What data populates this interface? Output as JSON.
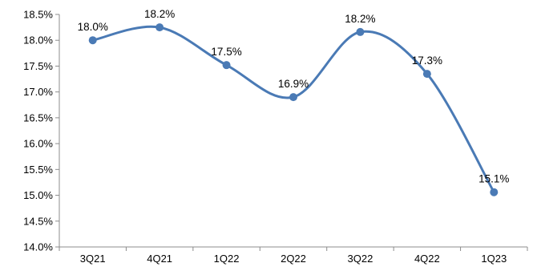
{
  "chart_data": {
    "type": "line",
    "categories": [
      "3Q21",
      "4Q21",
      "1Q22",
      "2Q22",
      "3Q22",
      "4Q22",
      "1Q23"
    ],
    "series": [
      {
        "values": [
          18.0,
          18.25,
          17.52,
          16.9,
          18.16,
          17.35,
          15.06
        ]
      }
    ],
    "data_labels": [
      "18.0%",
      "18.2%",
      "17.5%",
      "16.9%",
      "18.2%",
      "17.3%",
      "15.1%"
    ],
    "ylim": [
      14.0,
      18.5
    ],
    "y_ticks": [
      14.0,
      14.5,
      15.0,
      15.5,
      16.0,
      16.5,
      17.0,
      17.5,
      18.0,
      18.5
    ],
    "y_tick_labels": [
      "14.0%",
      "14.5%",
      "15.0%",
      "15.5%",
      "16.0%",
      "16.5%",
      "17.0%",
      "17.5%",
      "18.0%",
      "18.5%"
    ],
    "smooth": true,
    "markers": true,
    "grid": false,
    "legend": "none",
    "colors": {
      "line": "#4a7ab5",
      "marker": "#4a7ab5",
      "axis": "#8c8c8c"
    }
  }
}
